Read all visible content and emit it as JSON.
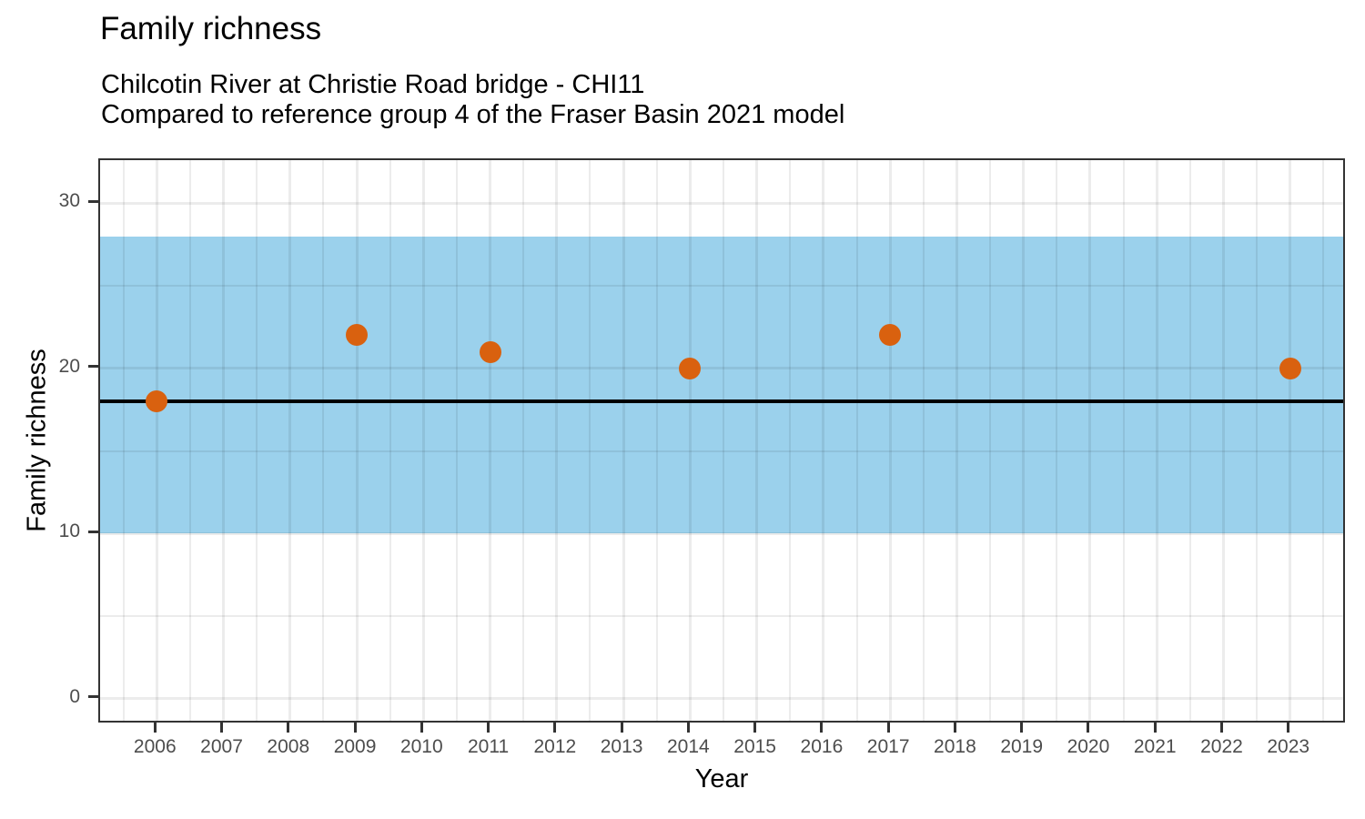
{
  "chart_data": {
    "type": "scatter",
    "title": "Family richness",
    "subtitle_line1": "Chilcotin River at Christie Road bridge - CHI11",
    "subtitle_line2": "Compared to reference group 4 of the Fraser Basin 2021 model",
    "xlabel": "Year",
    "ylabel": "Family richness",
    "x_range": [
      2005.15,
      2023.85
    ],
    "y_range": [
      -1.55,
      32.6
    ],
    "x_ticks": [
      2006,
      2007,
      2008,
      2009,
      2010,
      2011,
      2012,
      2013,
      2014,
      2015,
      2016,
      2017,
      2018,
      2019,
      2020,
      2021,
      2022,
      2023
    ],
    "y_ticks": [
      0,
      10,
      20,
      30
    ],
    "points": [
      {
        "year": 2006,
        "value": 18
      },
      {
        "year": 2009,
        "value": 22
      },
      {
        "year": 2011,
        "value": 21
      },
      {
        "year": 2014,
        "value": 20
      },
      {
        "year": 2017,
        "value": 22
      },
      {
        "year": 2023,
        "value": 20
      }
    ],
    "reference_band": {
      "ymin": 10,
      "ymax": 28
    },
    "reference_line": {
      "value": 18
    },
    "legend_position": "none",
    "grid": "major and minor, light grey",
    "colors": {
      "point": "#D9610F",
      "band": "#9BD1EC",
      "reference_line": "#000000",
      "grid": "rgba(0,0,0,0.075)",
      "panel_border": "#333333",
      "tick_mark": "#333333",
      "tick_label": "#4D4D4D",
      "text": "#000000"
    }
  }
}
